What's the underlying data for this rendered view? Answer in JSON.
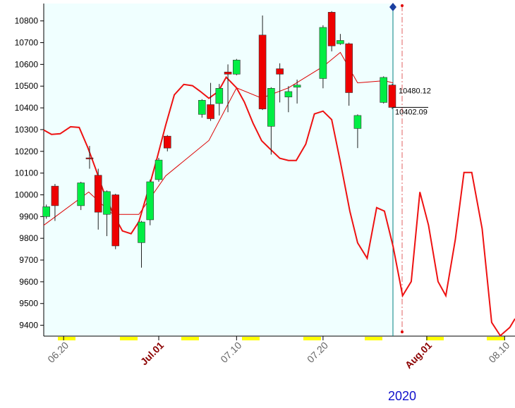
{
  "chart_data": {
    "type": "candlestick",
    "xlim": [
      17.7,
      72.2
    ],
    "ylim": [
      9350,
      10880
    ],
    "yticks": [
      9400,
      9500,
      9600,
      9700,
      9800,
      9900,
      10000,
      10100,
      10200,
      10300,
      10400,
      10500,
      10600,
      10700,
      10800
    ],
    "xticks": [
      {
        "value": 20,
        "label": "06.20"
      },
      {
        "value": 31,
        "label": "Jul.01",
        "highlight": true
      },
      {
        "value": 40,
        "label": "07.10"
      },
      {
        "value": 50,
        "label": "07.20"
      },
      {
        "value": 62,
        "label": "Aug.01",
        "highlight": true
      },
      {
        "value": 71,
        "label": "08.10"
      }
    ],
    "year_label": "2020",
    "up_color": "#00ee44",
    "down_color": "#ee0000",
    "candles": {
      "x": [
        18,
        19,
        22,
        23,
        24,
        25,
        26,
        29,
        30,
        31,
        32,
        36,
        37,
        38,
        39,
        40,
        43,
        44,
        45,
        46,
        47,
        50,
        51,
        52,
        53,
        54,
        57,
        58
      ],
      "open": [
        9900,
        10040,
        9950,
        10170,
        10090,
        9910,
        10000,
        9780,
        9885,
        10070,
        10270,
        10370,
        10415,
        10420,
        10565,
        10555,
        10735,
        10315,
        10580,
        10450,
        10495,
        10535,
        10840,
        10695,
        10695,
        10305,
        10425,
        10505
      ],
      "high": [
        9955,
        10050,
        10060,
        10225,
        10120,
        10020,
        10005,
        9880,
        10070,
        10170,
        10275,
        10440,
        10515,
        10510,
        10600,
        10625,
        10825,
        10495,
        10605,
        10500,
        10530,
        10780,
        10845,
        10740,
        10700,
        10370,
        10545,
        10510
      ],
      "low": [
        9890,
        9880,
        9930,
        10120,
        9840,
        9810,
        9750,
        9665,
        9860,
        10060,
        10200,
        10355,
        10340,
        10365,
        10380,
        10550,
        10390,
        10185,
        10425,
        10380,
        10420,
        10490,
        10660,
        10690,
        10410,
        10215,
        10420,
        10395
      ],
      "close": [
        9945,
        9950,
        10055,
        10165,
        9920,
        10015,
        9765,
        9875,
        10060,
        10160,
        10215,
        10435,
        10350,
        10490,
        10555,
        10620,
        10395,
        10490,
        10555,
        10475,
        10505,
        10770,
        10685,
        10710,
        10470,
        10365,
        10540,
        10402.09
      ]
    },
    "series": [
      {
        "color": "#dd0000",
        "width": 1,
        "x": [
          17.7,
          22.9,
          25.7,
          28.7,
          31.8,
          36.8,
          40,
          42.9,
          46,
          50,
          52,
          54,
          57.1,
          58.1
        ],
        "values": [
          9860,
          10013,
          9910,
          9910,
          10087,
          10250,
          10492,
          10445,
          10492,
          10590,
          10655,
          10515,
          10525,
          10515
        ]
      },
      {
        "color": "#ee1111",
        "width": 2,
        "x": [
          17.7,
          18.6,
          19.6,
          20.8,
          21.8,
          22.8,
          23.7,
          24.7,
          25.7,
          26.8,
          27.8,
          28.7,
          29.8,
          30.8,
          31.8,
          32.8,
          33.9,
          34.9,
          35.8,
          36.8,
          37.9,
          38.8,
          40,
          40.9,
          41.9,
          42.9,
          43.9,
          45,
          46,
          46.9,
          48,
          49,
          50,
          51,
          52,
          53.1,
          54,
          55.1,
          56.2,
          57.1,
          58.1,
          59.2,
          60.2,
          61.2,
          62.2,
          63.3,
          64.2,
          65.3,
          66.3,
          67.2,
          68.4,
          69.5,
          70.5,
          71.6,
          72.2
        ],
        "values": [
          10298,
          10278,
          10281,
          10313,
          10310,
          10217,
          10120,
          10006,
          9915,
          9834,
          9821,
          9876,
          10024,
          10168,
          10320,
          10460,
          10508,
          10502,
          10476,
          10444,
          10476,
          10541,
          10492,
          10427,
          10330,
          10249,
          10210,
          10168,
          10158,
          10158,
          10233,
          10372,
          10385,
          10346,
          10152,
          9925,
          9779,
          9708,
          9941,
          9925,
          9763,
          9536,
          9601,
          10013,
          9860,
          9601,
          9536,
          9795,
          10103,
          10103,
          9844,
          9413,
          9352,
          9390,
          9430
        ]
      }
    ],
    "annotations": [
      {
        "value": 10480.12
      },
      {
        "value": 10402.09
      }
    ]
  }
}
